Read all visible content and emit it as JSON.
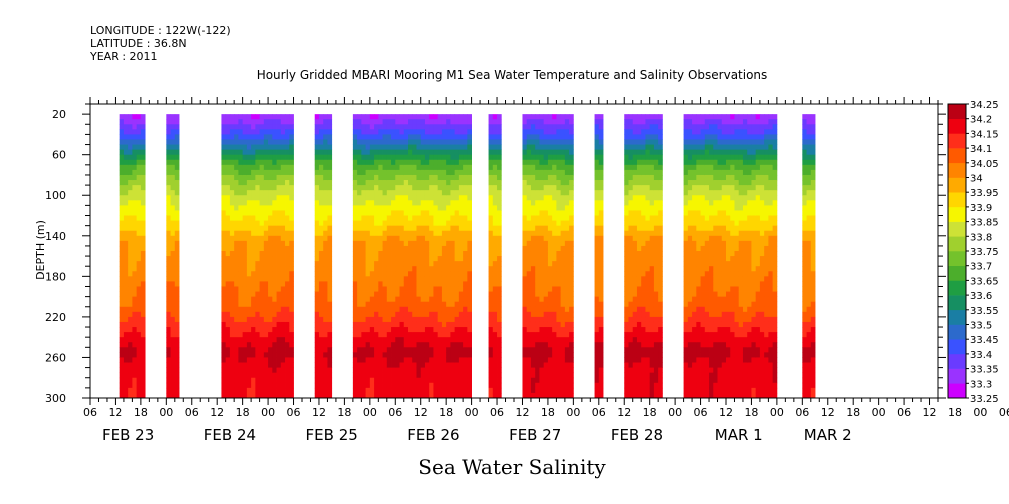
{
  "header": {
    "longitude": "LONGITUDE : 122W(-122)",
    "latitude": "LATITUDE : 36.8N",
    "year": "YEAR : 2011"
  },
  "chart_data": {
    "type": "heatmap",
    "title": "Hourly Gridded MBARI Mooring M1 Sea Water Temperature and Salinity Observations",
    "ylabel": "DEPTH (m)",
    "xlabel": "",
    "variable_label": "Sea Water Salinity",
    "y_range": [
      10,
      300
    ],
    "y_inverted": true,
    "y_ticks": [
      20,
      60,
      100,
      140,
      180,
      220,
      260,
      300
    ],
    "x_range_hours": [
      0,
      200
    ],
    "x_axis_note": "hours after 2011-02-23 06:00",
    "x_hour_ticks": [
      "06",
      "12",
      "18",
      "00",
      "06",
      "12",
      "18",
      "00",
      "06",
      "12",
      "18",
      "00",
      "06",
      "12",
      "18",
      "00",
      "06",
      "12",
      "18",
      "00",
      "06",
      "12",
      "18",
      "00",
      "06",
      "12",
      "18",
      "00",
      "06",
      "12",
      "18",
      "00",
      "06",
      "12",
      "18",
      "00",
      "06"
    ],
    "x_day_labels": [
      {
        "label": "FEB 23",
        "hour": 9
      },
      {
        "label": "FEB 24",
        "hour": 33
      },
      {
        "label": "FEB 25",
        "hour": 57
      },
      {
        "label": "FEB 26",
        "hour": 81
      },
      {
        "label": "FEB 27",
        "hour": 105
      },
      {
        "label": "FEB 28",
        "hour": 129
      },
      {
        "label": "MAR  1",
        "hour": 153
      },
      {
        "label": "MAR  2",
        "hour": 174
      }
    ],
    "data_segments_hours": [
      [
        7,
        13
      ],
      [
        18,
        21
      ],
      [
        31,
        48
      ],
      [
        53,
        57
      ],
      [
        62,
        90
      ],
      [
        94,
        97
      ],
      [
        102,
        114
      ],
      [
        119,
        121
      ],
      [
        126,
        135
      ],
      [
        140,
        162
      ],
      [
        168,
        171
      ]
    ],
    "colorbar_levels": [
      33.25,
      33.3,
      33.35,
      33.4,
      33.45,
      33.5,
      33.55,
      33.6,
      33.65,
      33.7,
      33.75,
      33.8,
      33.85,
      33.9,
      33.95,
      34,
      34.05,
      34.1,
      34.15,
      34.2,
      34.25
    ],
    "colorbar_labels": [
      "34.25",
      "34.2",
      "34.15",
      "34.1",
      "34.05",
      "34",
      "33.95",
      "33.9",
      "33.85",
      "33.8",
      "33.75",
      "33.7",
      "33.65",
      "33.6",
      "33.55",
      "33.5",
      "33.45",
      "33.4",
      "33.35",
      "33.3",
      "33.25"
    ],
    "colorbar_colors": [
      "#cc00ff",
      "#9a33ff",
      "#6a3bff",
      "#3a52ff",
      "#2c6acc",
      "#1a7ea4",
      "#168f62",
      "#1f9e43",
      "#4cae2c",
      "#74c22c",
      "#a0d02e",
      "#cde236",
      "#f6f600",
      "#ffd600",
      "#ffaa00",
      "#ff8400",
      "#ff5a00",
      "#ff2e1a",
      "#ee0010",
      "#bb0014"
    ],
    "salinity_profile": [
      {
        "depth": 10,
        "value": 33.27
      },
      {
        "depth": 25,
        "value": 33.33
      },
      {
        "depth": 40,
        "value": 33.42
      },
      {
        "depth": 55,
        "value": 33.55
      },
      {
        "depth": 70,
        "value": 33.68
      },
      {
        "depth": 85,
        "value": 33.76
      },
      {
        "depth": 100,
        "value": 33.83
      },
      {
        "depth": 115,
        "value": 33.88
      },
      {
        "depth": 130,
        "value": 33.93
      },
      {
        "depth": 145,
        "value": 34.0
      },
      {
        "depth": 180,
        "value": 34.03
      },
      {
        "depth": 210,
        "value": 34.07
      },
      {
        "depth": 225,
        "value": 34.12
      },
      {
        "depth": 240,
        "value": 34.17
      },
      {
        "depth": 255,
        "value": 34.22
      },
      {
        "depth": 270,
        "value": 34.18
      },
      {
        "depth": 300,
        "value": 34.17
      }
    ]
  }
}
